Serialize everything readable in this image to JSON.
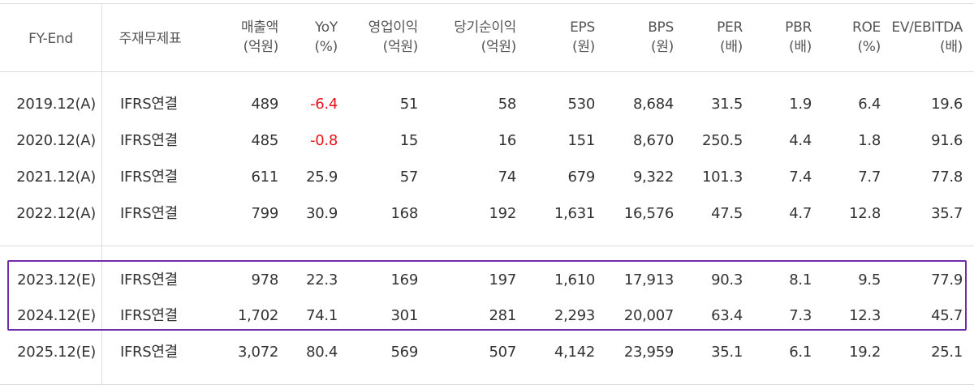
{
  "headers": {
    "fy": "FY-End",
    "statement": "주재무제표",
    "cols": [
      {
        "title": "매출액",
        "unit": "(억원)"
      },
      {
        "title": "YoY",
        "unit": "(%)"
      },
      {
        "title": "영업이익",
        "unit": "(억원)"
      },
      {
        "title": "당기순이익",
        "unit": "(억원)"
      },
      {
        "title": "EPS",
        "unit": "(원)"
      },
      {
        "title": "BPS",
        "unit": "(원)"
      },
      {
        "title": "PER",
        "unit": "(배)"
      },
      {
        "title": "PBR",
        "unit": "(배)"
      },
      {
        "title": "ROE",
        "unit": "(%)"
      },
      {
        "title": "EV/EBITDA",
        "unit": "(배)"
      }
    ]
  },
  "rows": [
    {
      "fy": "2019.12(A)",
      "statement": "IFRS연결",
      "values": [
        "489",
        "-6.4",
        "51",
        "58",
        "530",
        "8,684",
        "31.5",
        "1.9",
        "6.4",
        "19.6"
      ]
    },
    {
      "fy": "2020.12(A)",
      "statement": "IFRS연결",
      "values": [
        "485",
        "-0.8",
        "15",
        "16",
        "151",
        "8,670",
        "250.5",
        "4.4",
        "1.8",
        "91.6"
      ]
    },
    {
      "fy": "2021.12(A)",
      "statement": "IFRS연결",
      "values": [
        "611",
        "25.9",
        "57",
        "74",
        "679",
        "9,322",
        "101.3",
        "7.4",
        "7.7",
        "77.8"
      ]
    },
    {
      "fy": "2022.12(A)",
      "statement": "IFRS연결",
      "values": [
        "799",
        "30.9",
        "168",
        "192",
        "1,631",
        "16,576",
        "47.5",
        "4.7",
        "12.8",
        "35.7"
      ]
    },
    {
      "fy": "2023.12(E)",
      "statement": "IFRS연결",
      "values": [
        "978",
        "22.3",
        "169",
        "197",
        "1,610",
        "17,913",
        "90.3",
        "8.1",
        "9.5",
        "77.9"
      ]
    },
    {
      "fy": "2024.12(E)",
      "statement": "IFRS연결",
      "values": [
        "1,702",
        "74.1",
        "301",
        "281",
        "2,293",
        "20,007",
        "63.4",
        "7.3",
        "12.3",
        "45.7"
      ]
    },
    {
      "fy": "2025.12(E)",
      "statement": "IFRS연결",
      "values": [
        "3,072",
        "80.4",
        "569",
        "507",
        "4,142",
        "23,959",
        "35.1",
        "6.1",
        "19.2",
        "25.1"
      ]
    }
  ],
  "colors": {
    "negative": "#e8131b",
    "highlight_border": "#6f2da8",
    "grid": "#dcdcdc"
  }
}
